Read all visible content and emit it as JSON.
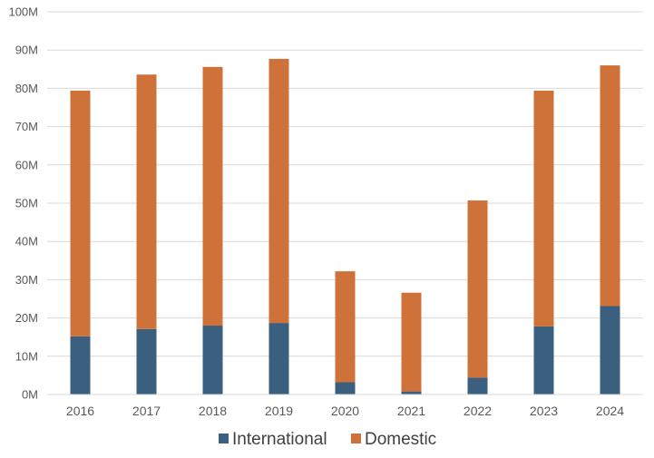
{
  "chart_data": {
    "type": "bar",
    "stacked": true,
    "categories": [
      "2016",
      "2017",
      "2018",
      "2019",
      "2020",
      "2021",
      "2022",
      "2023",
      "2024"
    ],
    "series": [
      {
        "name": "International",
        "color": "#3b5f7e",
        "values": [
          15.2,
          17.1,
          18.0,
          18.7,
          3.2,
          0.8,
          4.4,
          17.8,
          23.1
        ]
      },
      {
        "name": "Domestic",
        "color": "#cf7239",
        "values": [
          64.2,
          66.5,
          67.6,
          69.0,
          29.0,
          25.8,
          46.3,
          61.6,
          62.9
        ]
      }
    ],
    "ylim": [
      0,
      100
    ],
    "yticks": [
      "0M",
      "10M",
      "20M",
      "30M",
      "40M",
      "50M",
      "60M",
      "70M",
      "80M",
      "90M",
      "100M"
    ],
    "grid": true,
    "legend_position": "bottom"
  }
}
